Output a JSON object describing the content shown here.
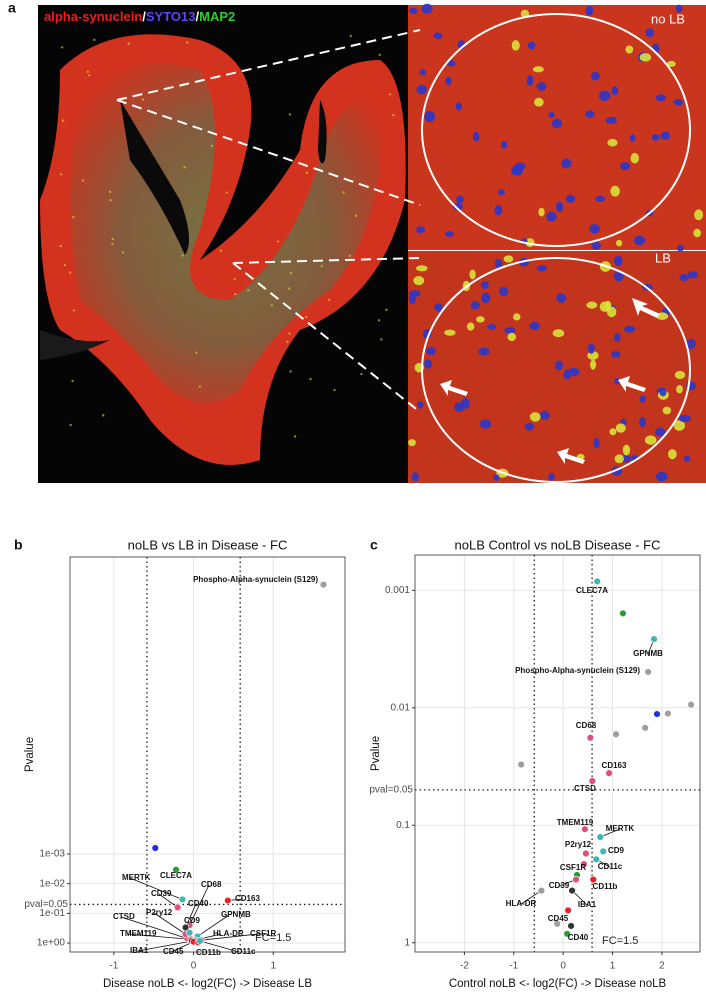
{
  "panel_a": {
    "label": "a",
    "legend": [
      {
        "text": "alpha-synuclein",
        "color": "#ee1c1c"
      },
      {
        "text": "/",
        "color": "#ffffff"
      },
      {
        "text": "SYTO13",
        "color": "#5a45f5"
      },
      {
        "text": "/",
        "color": "#ffffff"
      },
      {
        "text": "MAP2",
        "color": "#2ecc2e"
      }
    ],
    "insets": [
      "no LB",
      "LB"
    ]
  },
  "chart_data": [
    {
      "type": "scatter",
      "panel_label": "b",
      "title": "noLB vs LB in Disease - FC",
      "x_label": "Disease noLB <- log2(FC) -> Disease LB",
      "y_label": "Pvalue",
      "xlim": [
        -1.55,
        1.9
      ],
      "xticks": [
        -1,
        0,
        1
      ],
      "ylim": [
        2,
        1e-13
      ],
      "log_y": true,
      "yticks": [
        {
          "value": 0.001,
          "label": "1e-03"
        },
        {
          "value": 0.01,
          "label": "1e-02"
        },
        {
          "value": 0.1,
          "label": "1e-01"
        },
        {
          "value": 1,
          "label": "1e+00"
        }
      ],
      "grid": true,
      "fc_lines": [
        -0.585,
        0.585
      ],
      "fc_label": "FC=1.5",
      "pval_line": 0.05,
      "pval_label": "pval=0.05",
      "x": [
        1.63,
        -0.48,
        -0.22,
        -0.14,
        -0.05,
        0.43,
        -0.2,
        -0.1,
        0.05,
        -0.08,
        -0.1,
        -0.05,
        -0.03,
        0.02,
        0.1,
        -0.02,
        0.0,
        0.06,
        0.08
      ],
      "values": [
        8.5e-13,
        0.00063,
        0.0034,
        0.034,
        0.25,
        0.037,
        0.063,
        0.3,
        0.6,
        0.7,
        0.5,
        0.45,
        0.75,
        0.8,
        0.8,
        0.85,
        0.9,
        0.95,
        0.85
      ],
      "point_labels": [
        "Phospho-Alpha-synuclein (S129)",
        null,
        "CLEC7A",
        "MERTK",
        "CD68",
        "CD163",
        "CD39",
        "CD40",
        "GPNMB",
        "CTSD",
        "P2ry12",
        "CD9",
        "TMEM119",
        "HLA-DR",
        "CSF1R",
        "IBA1",
        "CD45",
        "CD11b",
        "CD11c"
      ],
      "point_colors": [
        "#9e9e9e",
        "#1f2fe0",
        "#2e9a3a",
        "#3fb6b6",
        "#e0507a",
        "#e8202a",
        "#e0507a",
        "#333333",
        "#3fb6b6",
        "#e0507a",
        "#e0507a",
        "#3fb6b6",
        "#e0507a",
        "#9e9e9e",
        "#e0507a",
        "#333333",
        "#e8202a",
        "#e8202a",
        "#3fb6b6"
      ]
    },
    {
      "type": "scatter",
      "panel_label": "c",
      "title": "noLB Control vs noLB Disease - FC",
      "x_label": "Control noLB <- log2(FC) -> Disease noLB",
      "y_label": "Pvalue",
      "xlim": [
        -3.0,
        2.77
      ],
      "xticks": [
        -2,
        -1,
        0,
        1,
        2
      ],
      "ylim": [
        1.2,
        0.0005
      ],
      "log_y": true,
      "yticks": [
        0.001,
        0.01,
        0.1,
        1
      ],
      "grid": true,
      "fc_lines": [
        -0.585,
        0.585
      ],
      "fc_label": "FC=1.5",
      "pval_line": 0.05,
      "pval_label": "pval=0.05",
      "x": [
        0.69,
        1.21,
        1.84,
        1.72,
        2.59,
        2.12,
        1.9,
        1.66,
        1.07,
        0.55,
        -0.85,
        0.93,
        0.59,
        0.44,
        0.75,
        0.81,
        0.46,
        0.67,
        0.42,
        0.28,
        0.61,
        0.26,
        -0.44,
        0.18,
        0.1,
        0.16,
        -0.12,
        0.08
      ],
      "values": [
        0.00084,
        0.00157,
        0.0026,
        0.00495,
        0.0094,
        0.0112,
        0.0113,
        0.0148,
        0.0168,
        0.018,
        0.0304,
        0.036,
        0.042,
        0.108,
        0.126,
        0.167,
        0.174,
        0.195,
        0.214,
        0.265,
        0.29,
        0.29,
        0.36,
        0.36,
        0.53,
        0.72,
        0.69,
        0.84
      ],
      "point_labels": [
        "CLEC7A",
        null,
        "GPNMB",
        "Phospho-Alpha-synuclein (S129)",
        null,
        null,
        null,
        null,
        null,
        "CD68",
        null,
        "CD163",
        "CTSD",
        "TMEM119",
        "MERTK",
        "CD9",
        "P2ry12",
        "CD11c",
        "CSF1R",
        null,
        "CD11b",
        "CD39",
        "HLA-DR",
        "IBA1",
        "CD45",
        "CD40",
        null,
        null
      ],
      "point_colors": [
        "#3fb6b6",
        "#2e9a3a",
        "#3fb6b6",
        "#9e9e9e",
        "#9e9e9e",
        "#9e9e9e",
        "#1f2fe0",
        "#9e9e9e",
        "#9e9e9e",
        "#e0507a",
        "#9e9e9e",
        "#e0507a",
        "#e0507a",
        "#e0507a",
        "#3fb6b6",
        "#3fb6b6",
        "#e0507a",
        "#3fb6b6",
        "#e0507a",
        "#2e9a3a",
        "#e8202a",
        "#e0507a",
        "#9e9e9e",
        "#333333",
        "#e8202a",
        "#333333",
        "#9e9e9e",
        "#2e9a3a"
      ]
    }
  ]
}
